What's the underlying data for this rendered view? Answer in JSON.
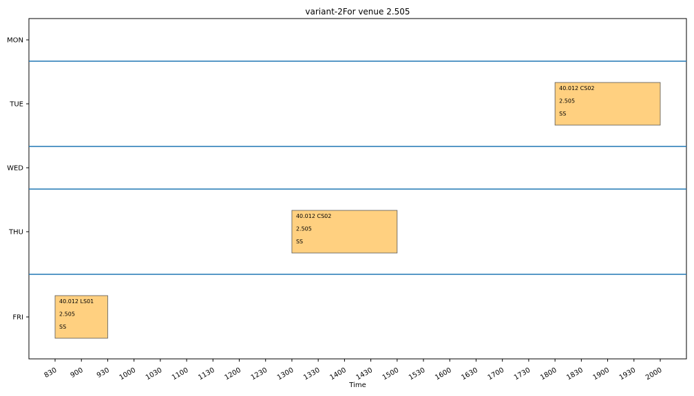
{
  "chart_data": {
    "type": "timeline",
    "title": "variant-2For venue 2.505",
    "xlabel": "Time",
    "x_ticks": [
      830,
      900,
      930,
      1000,
      1030,
      1100,
      1130,
      1200,
      1230,
      1300,
      1330,
      1400,
      1430,
      1500,
      1530,
      1600,
      1630,
      1700,
      1730,
      1800,
      1830,
      1900,
      1930,
      2000
    ],
    "x_tick_labels": [
      "830",
      "900",
      "930",
      "1000",
      "1030",
      "1100",
      "1130",
      "1200",
      "1230",
      "1300",
      "1330",
      "1400",
      "1430",
      "1500",
      "1530",
      "1600",
      "1630",
      "1700",
      "1730",
      "1800",
      "1830",
      "1900",
      "1930",
      "2000"
    ],
    "days": [
      "MON",
      "TUE",
      "WED",
      "THU",
      "FRI"
    ],
    "day_lanes": [
      1,
      2,
      1,
      2,
      2
    ],
    "events": [
      {
        "day": "TUE",
        "start": 1800,
        "end": 2000,
        "lines": [
          "40.012 CS02",
          "2.505",
          "SS"
        ]
      },
      {
        "day": "THU",
        "start": 1300,
        "end": 1500,
        "lines": [
          "40.012 CS02",
          "2.505",
          "SS"
        ]
      },
      {
        "day": "FRI",
        "start": 830,
        "end": 930,
        "lines": [
          "40.012 LS01",
          "2.505",
          "SS"
        ]
      }
    ],
    "colors": {
      "event_fill": "#ffd080",
      "event_stroke": "#555555",
      "separator": "#1f77b4",
      "axis": "#000000"
    }
  }
}
